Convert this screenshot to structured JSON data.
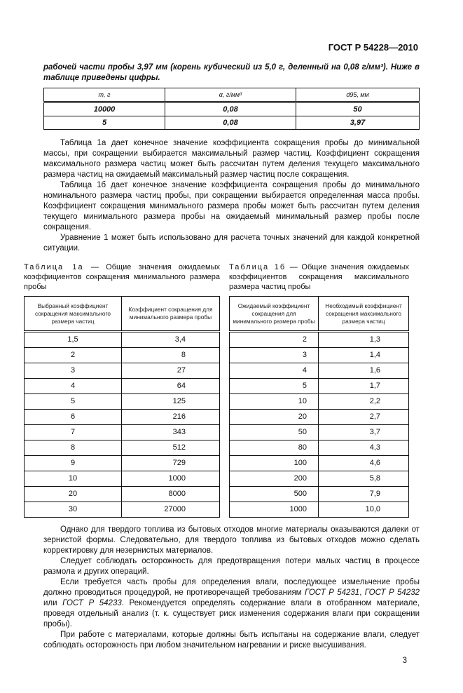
{
  "header": {
    "doc_id": "ГОСТ Р 54228—2010"
  },
  "intro": "рабочей части пробы 3,97 мм (корень кубический из 5,0 г, деленный на 0,08 г/мм³). Ниже в таблице приведены цифры.",
  "table1": {
    "headers": [
      "m, г",
      "α, г/мм³",
      "d95, мм"
    ],
    "rows": [
      [
        "10000",
        "0,08",
        "50"
      ],
      [
        "5",
        "0,08",
        "3,97"
      ]
    ]
  },
  "paragraphs_top": [
    "Таблица 1а дает конечное значение коэффициента сокращения пробы до минимальной массы, при сокращении выбирается максимальный размер частиц. Коэффициент сокращения максимального размера частиц может быть рассчитан путем деления текущего максимального размера частиц на ожидаемый максимальный размер частиц после сокращения.",
    "Таблица 1б дает конечное значение коэффициента сокращения пробы до минимального номинального размера частиц пробы, при сокращении выбирается определенная масса пробы. Коэффициент сокращения минимального размера пробы может быть рассчитан путем деления текущего минимального размера пробы на ожидаемый минимальный размер пробы после сокращения.",
    "Уравнение 1 может быть использовано для расчета точных значений для каждой конкретной ситуации."
  ],
  "table1a": {
    "caption_label": "Таблица 1а",
    "caption_text": " — Общие значения ожидаемых коэффициентов сокращения минимального размера пробы",
    "headers": [
      "Выбранный коэффициент сокращения максимального размера частиц",
      "Коэффициент сокращения для минимального размера пробы"
    ],
    "rows": [
      [
        "1,5",
        "3,4"
      ],
      [
        "2",
        "8"
      ],
      [
        "3",
        "27"
      ],
      [
        "4",
        "64"
      ],
      [
        "5",
        "125"
      ],
      [
        "6",
        "216"
      ],
      [
        "7",
        "343"
      ],
      [
        "8",
        "512"
      ],
      [
        "9",
        "729"
      ],
      [
        "10",
        "1000"
      ],
      [
        "20",
        "8000"
      ],
      [
        "30",
        "27000"
      ]
    ]
  },
  "table1b": {
    "caption_label": "Таблица 1б",
    "caption_text": " — Общие значения ожидаемых коэффициентов сокращения максимального размера частиц пробы",
    "headers": [
      "Ожидаемый коэффициент сокращения для минимального размера пробы",
      "Необходимый коэффициент сокращения максимального размера частиц"
    ],
    "rows": [
      [
        "2",
        "1,3"
      ],
      [
        "3",
        "1,4"
      ],
      [
        "4",
        "1,6"
      ],
      [
        "5",
        "1,7"
      ],
      [
        "10",
        "2,2"
      ],
      [
        "20",
        "2,7"
      ],
      [
        "50",
        "3,7"
      ],
      [
        "80",
        "4,3"
      ],
      [
        "100",
        "4,6"
      ],
      [
        "200",
        "5,8"
      ],
      [
        "500",
        "7,9"
      ],
      [
        "1000",
        "10,0"
      ]
    ]
  },
  "paragraphs_bottom": {
    "p1": "Однако для твердого топлива из бытовых отходов многие материалы оказываются далеки от зернистой формы. Следовательно, для твердого топлива из бытовых отходов можно сделать корректировку для незернистых материалов.",
    "p2": "Следует соблюдать осторожность для предотвращения потери малых частиц в процессе размола и других операций.",
    "p3_a": "Если требуется часть пробы для определения влаги, последующее измельчение пробы должно проводиться процедурой, не противоречащей требованиям ",
    "ref1": "ГОСТ Р 54231",
    "p3_b": ", ",
    "ref2": "ГОСТ Р 54232",
    "p3_c": " или ",
    "ref3": "ГОСТ Р 54233",
    "p3_d": ". Рекомендуется определять содержание влаги в отобранном материале, проведя отдельный анализ (т. к. существует риск изменения содержания влаги при сокращении пробы).",
    "p4": "При работе с материалами, которые должны быть испытаны на содержание влаги, следует соблюдать осторожность при любом значительном нагревании и риске высушивания."
  },
  "page_number": "3"
}
